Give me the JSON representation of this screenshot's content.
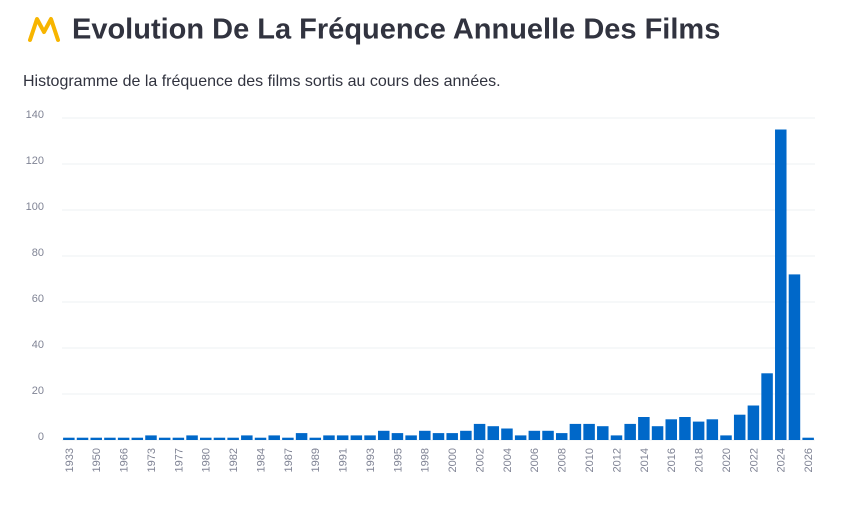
{
  "title": "Evolution De La Fréquence Annuelle Des Films",
  "subtitle": "Histogramme de la fréquence des films sortis au cours des années.",
  "chart_data": {
    "type": "bar",
    "categories": [
      "1933",
      null,
      "1950",
      null,
      "1966",
      null,
      "1973",
      null,
      "1977",
      null,
      "1980",
      null,
      "1982",
      null,
      "1984",
      null,
      "1987",
      null,
      "1989",
      null,
      "1991",
      null,
      "1993",
      null,
      "1995",
      null,
      "1998",
      null,
      "2000",
      null,
      "2002",
      null,
      "2004",
      null,
      "2006",
      null,
      "2008",
      null,
      "2010",
      null,
      "2012",
      null,
      "2014",
      null,
      "2016",
      null,
      "2018",
      null,
      "2020",
      null,
      "2022",
      null,
      "2024",
      null,
      "2026"
    ],
    "values": [
      1,
      1,
      1,
      1,
      1,
      1,
      2,
      1,
      1,
      2,
      1,
      1,
      1,
      2,
      1,
      2,
      1,
      3,
      1,
      2,
      2,
      2,
      2,
      4,
      3,
      2,
      4,
      3,
      3,
      4,
      7,
      6,
      5,
      2,
      4,
      4,
      3,
      7,
      7,
      6,
      2,
      7,
      10,
      6,
      9,
      10,
      8,
      9,
      2,
      11,
      15,
      29,
      135,
      72,
      1
    ],
    "color": "#0068c9",
    "ylim": [
      0,
      140
    ],
    "yticks": [
      0,
      20,
      40,
      60,
      80,
      100,
      120,
      140
    ],
    "grid": true
  }
}
